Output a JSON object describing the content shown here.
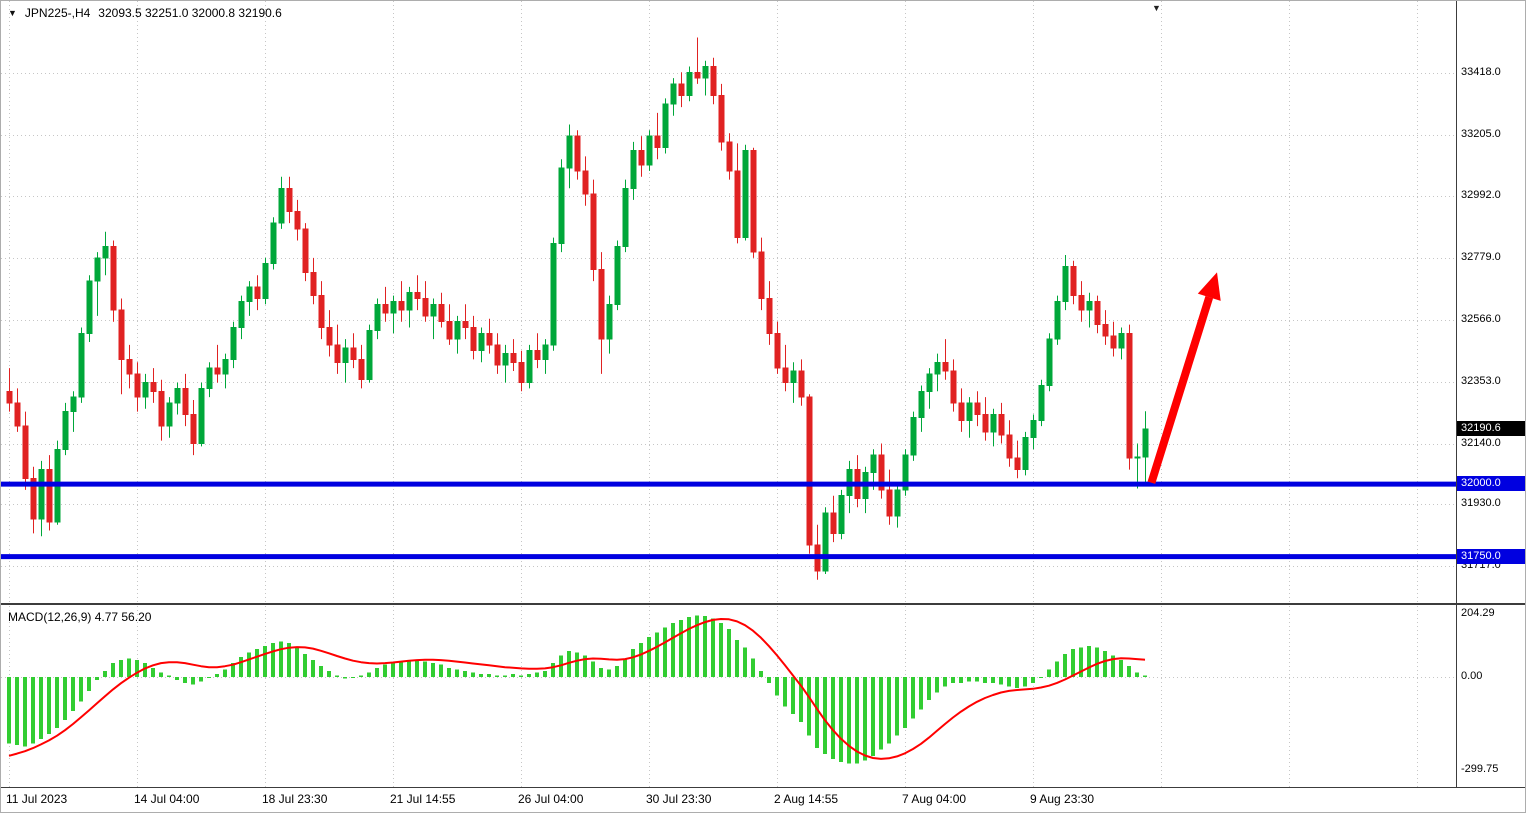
{
  "window": {
    "marker_icon": "▼",
    "title": "JPN225-,H4",
    "ohlc": "32093.5 32251.0 32000.8 32190.6",
    "shift_marker_icon": "▼"
  },
  "colors": {
    "background": "#ffffff",
    "grid": "#c6c6c6",
    "bull": "#00a73a",
    "bear": "#e02222",
    "macd_histogram": "#32cd32",
    "macd_signal": "#ff0000",
    "level_line": "#0000e0",
    "level_tag_bg": "#0000e0",
    "bid_tag_bg": "#000000",
    "tag_text": "#ffffff",
    "axis_text": "#000000",
    "arrow": "#fe0000"
  },
  "price_axis": {
    "bid_tag": "32190.6",
    "level_tags": [
      "32000.0",
      "31750.0"
    ]
  },
  "macd": {
    "label": "MACD(12,26,9) 4.77 56.20"
  },
  "chart_data": {
    "type": "candlestick",
    "symbol": "JPN225-",
    "timeframe": "H4",
    "current_bar_ohlc": [
      32093.5,
      32251.0,
      32000.8,
      32190.6
    ],
    "bid": 32190.6,
    "levels": [
      32000.0,
      31750.0
    ],
    "price_range": [
      31590,
      33666
    ],
    "macd_range": [
      -356,
      230
    ],
    "x_tick_labels": [
      "11 Jul 2023",
      "14 Jul 04:00",
      "18 Jul 23:30",
      "21 Jul 14:55",
      "26 Jul 04:00",
      "30 Jul 23:30",
      "2 Aug 14:55",
      "7 Aug 04:00",
      "9 Aug 23:30"
    ],
    "y_tick_labels": [
      "33418.0",
      "33205.0",
      "32992.0",
      "32779.0",
      "32566.0",
      "32353.0",
      "32140.0",
      "31930.0",
      "31717.0"
    ],
    "macd_tick_labels": [
      "204.29",
      "0.00",
      "-299.75"
    ],
    "candles": [
      [
        32320,
        32400,
        32250,
        32280
      ],
      [
        32280,
        32330,
        32180,
        32200
      ],
      [
        32200,
        32250,
        31980,
        32020
      ],
      [
        32020,
        32060,
        31830,
        31880
      ],
      [
        31880,
        32080,
        31820,
        32050
      ],
      [
        32050,
        32100,
        31840,
        31870
      ],
      [
        31870,
        32150,
        31860,
        32120
      ],
      [
        32120,
        32280,
        32100,
        32250
      ],
      [
        32250,
        32320,
        32180,
        32300
      ],
      [
        32300,
        32540,
        32280,
        32520
      ],
      [
        32520,
        32720,
        32490,
        32700
      ],
      [
        32700,
        32800,
        32580,
        32780
      ],
      [
        32780,
        32870,
        32720,
        32820
      ],
      [
        32820,
        32840,
        32560,
        32600
      ],
      [
        32600,
        32640,
        32310,
        32430
      ],
      [
        32430,
        32480,
        32330,
        32380
      ],
      [
        32380,
        32420,
        32250,
        32300
      ],
      [
        32300,
        32380,
        32260,
        32350
      ],
      [
        32350,
        32400,
        32280,
        32320
      ],
      [
        32320,
        32360,
        32150,
        32200
      ],
      [
        32200,
        32300,
        32160,
        32280
      ],
      [
        32280,
        32350,
        32240,
        32330
      ],
      [
        32330,
        32380,
        32200,
        32240
      ],
      [
        32240,
        32290,
        32100,
        32140
      ],
      [
        32140,
        32350,
        32130,
        32330
      ],
      [
        32330,
        32420,
        32300,
        32400
      ],
      [
        32400,
        32480,
        32350,
        32380
      ],
      [
        32380,
        32450,
        32330,
        32430
      ],
      [
        32430,
        32560,
        32400,
        32540
      ],
      [
        32540,
        32650,
        32500,
        32630
      ],
      [
        32630,
        32700,
        32580,
        32680
      ],
      [
        32680,
        32720,
        32600,
        32640
      ],
      [
        32640,
        32780,
        32620,
        32760
      ],
      [
        32760,
        32920,
        32740,
        32900
      ],
      [
        32900,
        33060,
        32880,
        33020
      ],
      [
        33020,
        33060,
        32900,
        32940
      ],
      [
        32940,
        32980,
        32840,
        32880
      ],
      [
        32880,
        32900,
        32700,
        32730
      ],
      [
        32730,
        32780,
        32620,
        32650
      ],
      [
        32650,
        32700,
        32500,
        32540
      ],
      [
        32540,
        32600,
        32440,
        32480
      ],
      [
        32480,
        32550,
        32380,
        32420
      ],
      [
        32420,
        32500,
        32350,
        32470
      ],
      [
        32470,
        32520,
        32400,
        32430
      ],
      [
        32430,
        32480,
        32330,
        32360
      ],
      [
        32360,
        32550,
        32350,
        32530
      ],
      [
        32530,
        32640,
        32500,
        32620
      ],
      [
        32620,
        32680,
        32560,
        32590
      ],
      [
        32590,
        32650,
        32520,
        32630
      ],
      [
        32630,
        32700,
        32560,
        32600
      ],
      [
        32600,
        32680,
        32540,
        32660
      ],
      [
        32660,
        32720,
        32600,
        32640
      ],
      [
        32640,
        32700,
        32560,
        32580
      ],
      [
        32580,
        32640,
        32500,
        32620
      ],
      [
        32620,
        32660,
        32540,
        32560
      ],
      [
        32560,
        32620,
        32480,
        32500
      ],
      [
        32500,
        32580,
        32450,
        32560
      ],
      [
        32560,
        32620,
        32500,
        32540
      ],
      [
        32540,
        32580,
        32430,
        32460
      ],
      [
        32460,
        32540,
        32420,
        32520
      ],
      [
        32520,
        32570,
        32450,
        32480
      ],
      [
        32480,
        32520,
        32380,
        32410
      ],
      [
        32410,
        32480,
        32350,
        32450
      ],
      [
        32450,
        32500,
        32390,
        32420
      ],
      [
        32420,
        32460,
        32320,
        32350
      ],
      [
        32350,
        32480,
        32330,
        32460
      ],
      [
        32460,
        32520,
        32400,
        32430
      ],
      [
        32430,
        32500,
        32380,
        32480
      ],
      [
        32480,
        32850,
        32460,
        32830
      ],
      [
        32830,
        33120,
        32800,
        33090
      ],
      [
        33090,
        33240,
        33020,
        33200
      ],
      [
        33200,
        33220,
        33050,
        33080
      ],
      [
        33080,
        33130,
        32960,
        33000
      ],
      [
        33000,
        33050,
        32700,
        32740
      ],
      [
        32740,
        32800,
        32380,
        32500
      ],
      [
        32500,
        32650,
        32450,
        32620
      ],
      [
        32620,
        32840,
        32600,
        32820
      ],
      [
        32820,
        33050,
        32800,
        33020
      ],
      [
        33020,
        33180,
        32980,
        33150
      ],
      [
        33150,
        33200,
        33060,
        33100
      ],
      [
        33100,
        33220,
        33080,
        33200
      ],
      [
        33200,
        33280,
        33120,
        33160
      ],
      [
        33160,
        33330,
        33140,
        33310
      ],
      [
        33310,
        33400,
        33270,
        33380
      ],
      [
        33380,
        33420,
        33300,
        33340
      ],
      [
        33340,
        33440,
        33320,
        33420
      ],
      [
        33420,
        33540,
        33380,
        33400
      ],
      [
        33400,
        33460,
        33340,
        33440
      ],
      [
        33440,
        33470,
        33310,
        33340
      ],
      [
        33340,
        33380,
        33150,
        33180
      ],
      [
        33180,
        33210,
        33050,
        33080
      ],
      [
        33080,
        33175,
        32830,
        32850
      ],
      [
        32850,
        33170,
        32840,
        33150
      ],
      [
        33150,
        33160,
        32780,
        32800
      ],
      [
        32800,
        32850,
        32600,
        32640
      ],
      [
        32640,
        32700,
        32480,
        32520
      ],
      [
        32520,
        32560,
        32380,
        32400
      ],
      [
        32400,
        32480,
        32320,
        32350
      ],
      [
        32350,
        32420,
        32280,
        32390
      ],
      [
        32390,
        32430,
        32270,
        32300
      ],
      [
        32300,
        32310,
        31760,
        31790
      ],
      [
        31790,
        31860,
        31670,
        31700
      ],
      [
        31700,
        31920,
        31690,
        31900
      ],
      [
        31900,
        31960,
        31800,
        31830
      ],
      [
        31830,
        31980,
        31810,
        31960
      ],
      [
        31960,
        32080,
        31900,
        32050
      ],
      [
        32050,
        32100,
        31920,
        31950
      ],
      [
        31950,
        32060,
        31900,
        32040
      ],
      [
        32040,
        32120,
        31980,
        32100
      ],
      [
        32100,
        32140,
        31950,
        31980
      ],
      [
        31980,
        32050,
        31860,
        31890
      ],
      [
        31890,
        32000,
        31850,
        31980
      ],
      [
        31980,
        32120,
        31960,
        32100
      ],
      [
        32100,
        32250,
        32080,
        32230
      ],
      [
        32230,
        32340,
        32180,
        32320
      ],
      [
        32320,
        32400,
        32260,
        32380
      ],
      [
        32380,
        32450,
        32320,
        32420
      ],
      [
        32420,
        32500,
        32360,
        32390
      ],
      [
        32390,
        32430,
        32250,
        32280
      ],
      [
        32280,
        32330,
        32180,
        32220
      ],
      [
        32220,
        32300,
        32160,
        32280
      ],
      [
        32280,
        32320,
        32200,
        32240
      ],
      [
        32240,
        32300,
        32150,
        32180
      ],
      [
        32180,
        32260,
        32130,
        32240
      ],
      [
        32240,
        32280,
        32140,
        32170
      ],
      [
        32170,
        32220,
        32060,
        32090
      ],
      [
        32090,
        32150,
        32020,
        32050
      ],
      [
        32050,
        32180,
        32030,
        32160
      ],
      [
        32160,
        32240,
        32120,
        32220
      ],
      [
        32220,
        32360,
        32200,
        32340
      ],
      [
        32340,
        32520,
        32320,
        32500
      ],
      [
        32500,
        32650,
        32480,
        32630
      ],
      [
        32630,
        32790,
        32600,
        32750
      ],
      [
        32750,
        32770,
        32620,
        32650
      ],
      [
        32650,
        32700,
        32560,
        32600
      ],
      [
        32600,
        32660,
        32540,
        32630
      ],
      [
        32630,
        32650,
        32520,
        32550
      ],
      [
        32550,
        32600,
        32480,
        32510
      ],
      [
        32510,
        32560,
        32440,
        32470
      ],
      [
        32470,
        32540,
        32430,
        32520
      ],
      [
        32520,
        32550,
        32050,
        32090
      ],
      [
        32090,
        32140,
        31985,
        32093.5
      ],
      [
        32093.5,
        32251.0,
        32000.8,
        32190.6
      ]
    ],
    "macd_histogram": [
      -215,
      -220,
      -225,
      -215,
      -200,
      -185,
      -165,
      -140,
      -110,
      -80,
      -45,
      -10,
      20,
      45,
      55,
      60,
      55,
      45,
      30,
      15,
      5,
      -10,
      -20,
      -25,
      -15,
      0,
      10,
      25,
      45,
      65,
      80,
      90,
      100,
      110,
      115,
      110,
      95,
      75,
      55,
      35,
      20,
      5,
      -5,
      0,
      5,
      15,
      30,
      40,
      45,
      50,
      55,
      55,
      50,
      45,
      40,
      30,
      25,
      20,
      15,
      10,
      10,
      5,
      5,
      10,
      5,
      10,
      15,
      20,
      45,
      70,
      85,
      80,
      70,
      50,
      30,
      25,
      35,
      60,
      90,
      110,
      130,
      145,
      160,
      175,
      185,
      195,
      200,
      198,
      190,
      175,
      155,
      120,
      95,
      60,
      20,
      -20,
      -60,
      -95,
      -120,
      -145,
      -190,
      -230,
      -250,
      -265,
      -275,
      -280,
      -280,
      -270,
      -255,
      -235,
      -215,
      -190,
      -165,
      -135,
      -105,
      -75,
      -50,
      -30,
      -20,
      -20,
      -15,
      -15,
      -20,
      -20,
      -25,
      -30,
      -35,
      -30,
      -20,
      0,
      25,
      50,
      75,
      90,
      95,
      100,
      95,
      85,
      70,
      55,
      35,
      15,
      4.77
    ],
    "macd_signal": [
      -255,
      -248,
      -240,
      -230,
      -218,
      -205,
      -190,
      -172,
      -152,
      -130,
      -108,
      -85,
      -62,
      -40,
      -20,
      -2,
      14,
      28,
      38,
      45,
      48,
      48,
      45,
      40,
      35,
      32,
      32,
      35,
      40,
      48,
      57,
      66,
      75,
      83,
      90,
      95,
      97,
      96,
      92,
      85,
      77,
      68,
      60,
      53,
      48,
      45,
      44,
      45,
      47,
      50,
      53,
      55,
      56,
      56,
      55,
      53,
      50,
      47,
      44,
      41,
      38,
      35,
      32,
      30,
      28,
      27,
      27,
      28,
      32,
      38,
      46,
      53,
      58,
      60,
      59,
      57,
      56,
      58,
      64,
      73,
      85,
      98,
      112,
      127,
      142,
      156,
      168,
      178,
      185,
      188,
      187,
      180,
      168,
      150,
      127,
      100,
      70,
      38,
      5,
      -28,
      -65,
      -103,
      -140,
      -172,
      -200,
      -223,
      -241,
      -254,
      -262,
      -265,
      -263,
      -257,
      -247,
      -233,
      -216,
      -196,
      -174,
      -152,
      -131,
      -112,
      -95,
      -80,
      -68,
      -58,
      -50,
      -45,
      -42,
      -40,
      -38,
      -34,
      -28,
      -19,
      -8,
      5,
      18,
      31,
      43,
      52,
      58,
      61,
      60,
      58,
      56.2
    ],
    "annotations": [
      {
        "type": "arrow-up",
        "from_bar": 142.8,
        "from_price": 32005,
        "to_bar": 151,
        "to_price": 32730
      }
    ]
  }
}
